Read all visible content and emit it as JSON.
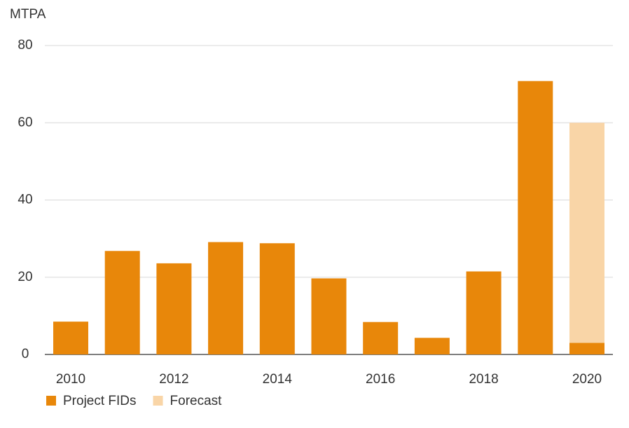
{
  "chart_data": {
    "type": "stacked-bar",
    "y_label": "MTPA",
    "categories": [
      "2010",
      null,
      "2012",
      null,
      "2014",
      null,
      "2016",
      null,
      "2018",
      null,
      "2020"
    ],
    "series": [
      {
        "name": "Project FIDs",
        "color": "#e8870a",
        "values": [
          8.5,
          26.8,
          23.6,
          29.1,
          28.8,
          19.7,
          8.4,
          4.3,
          21.5,
          70.8,
          3
        ]
      },
      {
        "name": "Forecast",
        "color": "#f9d5a7",
        "values": [
          null,
          null,
          null,
          null,
          null,
          null,
          null,
          null,
          null,
          null,
          57
        ]
      }
    ],
    "ylim": [
      0,
      80
    ],
    "yticks": [
      0,
      20,
      40,
      60,
      80
    ],
    "grid": true,
    "legend": "bottom-left"
  }
}
